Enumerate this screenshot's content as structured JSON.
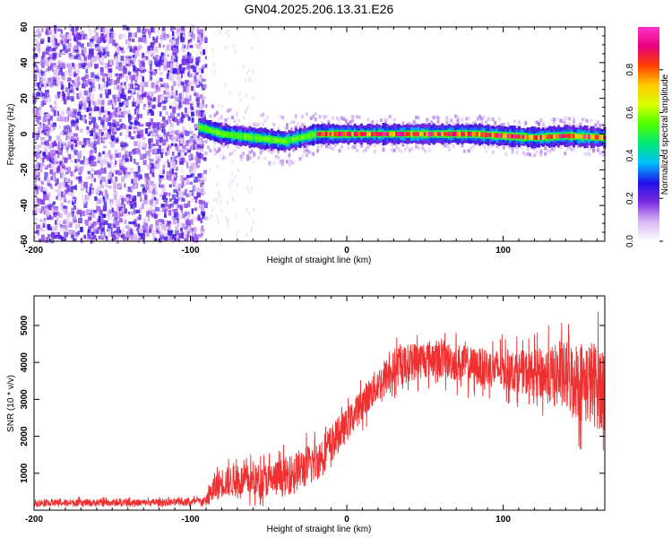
{
  "title": "GN04.2025.206.13.31.E26",
  "chart_data": [
    {
      "type": "heatmap",
      "xlabel": "Height of straight line (km)",
      "ylabel": "Frequency (Hz)",
      "xlim": [
        -200,
        165
      ],
      "ylim": [
        -60,
        60
      ],
      "x_ticks": [
        -200,
        -100,
        0,
        100
      ],
      "y_ticks": [
        -60,
        -40,
        -20,
        0,
        20,
        40,
        60
      ],
      "colorbar": {
        "label": "Normalized spectral amplitude",
        "range": [
          0,
          1
        ],
        "ticks": [
          0.0,
          0.2,
          0.4,
          0.6,
          0.8
        ],
        "colormap": [
          "#ffffff",
          "#d9b8f5",
          "#7a2de0",
          "#2010e8",
          "#00bfff",
          "#00e87a",
          "#4cff00",
          "#d8ff00",
          "#ffcc00",
          "#ff4000",
          "#e8007a",
          "#ff33cc"
        ]
      },
      "noise_region_x": [
        -200,
        -90
      ],
      "signal_region_x": [
        -95,
        165
      ],
      "signal_center_freq": [
        [
          -95,
          4
        ],
        [
          -80,
          0
        ],
        [
          -60,
          -2
        ],
        [
          -40,
          -4
        ],
        [
          -30,
          -2
        ],
        [
          -20,
          0
        ],
        [
          0,
          0
        ],
        [
          40,
          0
        ],
        [
          80,
          0
        ],
        [
          100,
          -1
        ],
        [
          120,
          -2
        ],
        [
          140,
          -1
        ],
        [
          165,
          -2
        ]
      ]
    },
    {
      "type": "line",
      "xlabel": "Height of straight line (km)",
      "ylabel": "SNR (10 * v/v)",
      "xlim": [
        -200,
        165
      ],
      "ylim": [
        0,
        5800
      ],
      "x_ticks": [
        -200,
        -100,
        0,
        100
      ],
      "y_ticks": [
        1000,
        2000,
        3000,
        4000,
        5000
      ],
      "color": "#f03030",
      "series": [
        {
          "x": [
            -200,
            -180,
            -160,
            -140,
            -120,
            -100,
            -90,
            -85,
            -80,
            -70,
            -60,
            -50,
            -40,
            -30,
            -20,
            -10,
            0,
            10,
            20,
            30,
            40,
            50,
            60,
            70,
            80,
            90,
            100,
            110,
            120,
            130,
            140,
            150,
            160,
            165
          ],
          "y": [
            200,
            200,
            200,
            200,
            210,
            220,
            250,
            600,
            750,
            800,
            800,
            820,
            900,
            1100,
            1300,
            1800,
            2300,
            2900,
            3400,
            3800,
            4000,
            4100,
            4100,
            4000,
            3900,
            3850,
            3800,
            3750,
            3700,
            3650,
            3600,
            3500,
            3400,
            3300
          ],
          "spread": [
            120,
            120,
            120,
            120,
            120,
            120,
            150,
            500,
            500,
            550,
            550,
            600,
            650,
            700,
            700,
            650,
            550,
            550,
            600,
            650,
            650,
            650,
            650,
            650,
            650,
            650,
            700,
            700,
            800,
            1000,
            1200,
            1400,
            1500,
            1500
          ]
        }
      ]
    }
  ]
}
